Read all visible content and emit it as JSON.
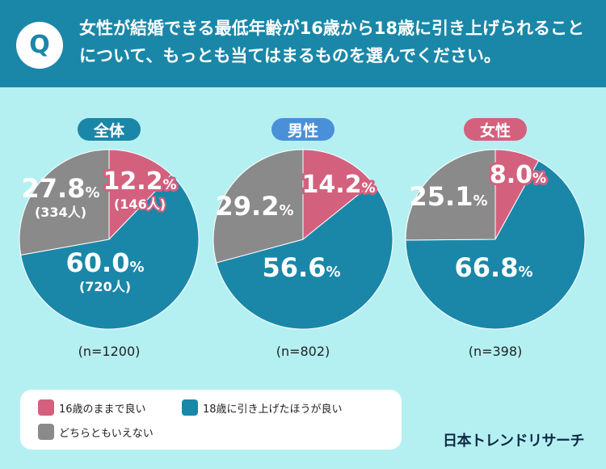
{
  "header": {
    "badge": "Q",
    "question": "女性が結婚できる最低年齢が16歳から18歳に引き上げられることについて、もっとも当てはまるものを選んでください。"
  },
  "colors": {
    "background": "#b4f0f2",
    "header": "#1a87a8",
    "pink": "#d3617e",
    "teal": "#1a87a8",
    "gray": "#8a8a8a",
    "pill_total": "#1a87a8",
    "pill_male": "#4a90d9",
    "pill_female": "#d3617e"
  },
  "chart_data": [
    {
      "type": "pie",
      "title": "全体",
      "n_label": "(n=1200)",
      "slices": [
        {
          "label": "16歳のままで良い",
          "value": 12.2,
          "text": "12.2",
          "count": "(146人)",
          "color": "#d3617e"
        },
        {
          "label": "18歳に引き上げたほうが良い",
          "value": 60.0,
          "text": "60.0",
          "count": "(720人)",
          "color": "#1a87a8"
        },
        {
          "label": "どちらともいえない",
          "value": 27.8,
          "text": "27.8",
          "count": "(334人)",
          "color": "#8a8a8a"
        }
      ]
    },
    {
      "type": "pie",
      "title": "男性",
      "n_label": "(n=802)",
      "slices": [
        {
          "label": "16歳のままで良い",
          "value": 14.2,
          "text": "14.2",
          "count": "",
          "color": "#d3617e"
        },
        {
          "label": "18歳に引き上げたほうが良い",
          "value": 56.6,
          "text": "56.6",
          "count": "",
          "color": "#1a87a8"
        },
        {
          "label": "どちらともいえない",
          "value": 29.2,
          "text": "29.2",
          "count": "",
          "color": "#8a8a8a"
        }
      ]
    },
    {
      "type": "pie",
      "title": "女性",
      "n_label": "(n=398)",
      "slices": [
        {
          "label": "16歳のままで良い",
          "value": 8.0,
          "text": "8.0",
          "count": "",
          "color": "#d3617e"
        },
        {
          "label": "18歳に引き上げたほうが良い",
          "value": 66.8,
          "text": "66.8",
          "count": "",
          "color": "#1a87a8"
        },
        {
          "label": "どちらともいえない",
          "value": 25.1,
          "text": "25.1",
          "count": "",
          "color": "#8a8a8a"
        }
      ]
    }
  ],
  "percent_sign": "%",
  "legend": [
    {
      "label": "16歳のままで良い",
      "color": "#d3617e"
    },
    {
      "label": "18歳に引き上げたほうが良い",
      "color": "#1a87a8"
    },
    {
      "label": "どちらともいえない",
      "color": "#8a8a8a"
    }
  ],
  "brand": "日本トレンドリサーチ"
}
